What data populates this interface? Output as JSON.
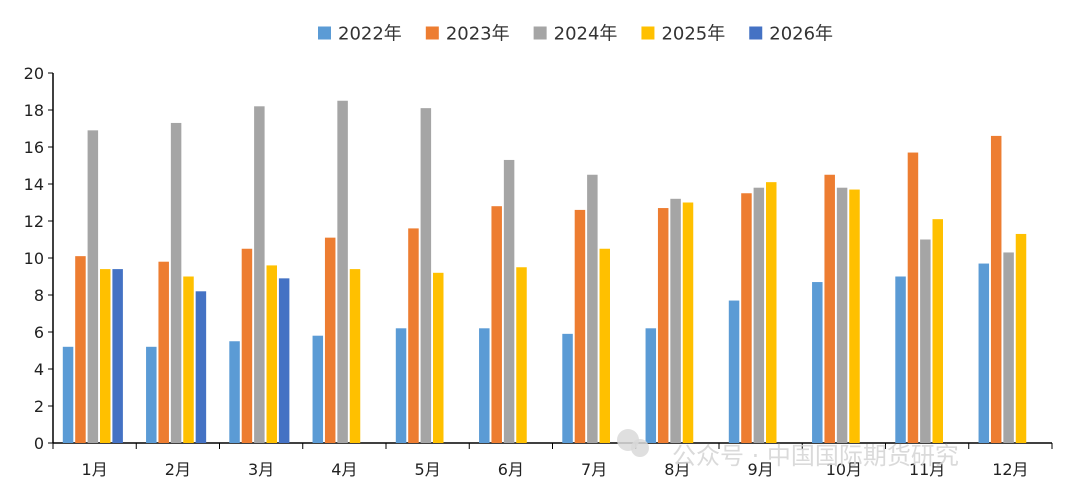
{
  "chart_data": {
    "type": "bar",
    "title": "",
    "xlabel": "",
    "ylabel": "",
    "categories": [
      "1月",
      "2月",
      "3月",
      "4月",
      "5月",
      "6月",
      "7月",
      "8月",
      "9月",
      "10月",
      "11月",
      "12月"
    ],
    "ylim": [
      0,
      20
    ],
    "yticks": [
      0,
      2,
      4,
      6,
      8,
      10,
      12,
      14,
      16,
      18,
      20
    ],
    "grid": false,
    "legend_position": "top-center",
    "series": [
      {
        "name": "2022年",
        "color": "#5b9bd5",
        "values": [
          5.2,
          5.2,
          5.5,
          5.8,
          6.2,
          6.2,
          5.9,
          6.2,
          7.7,
          8.7,
          9.0,
          9.7
        ]
      },
      {
        "name": "2023年",
        "color": "#ed7d31",
        "values": [
          10.1,
          9.8,
          10.5,
          11.1,
          11.6,
          12.8,
          12.6,
          12.7,
          13.5,
          14.5,
          15.7,
          16.6
        ]
      },
      {
        "name": "2024年",
        "color": "#a5a5a5",
        "values": [
          16.9,
          17.3,
          18.2,
          18.5,
          18.1,
          15.3,
          14.5,
          13.2,
          13.8,
          13.8,
          11.0,
          10.3
        ]
      },
      {
        "name": "2025年",
        "color": "#ffc000",
        "values": [
          9.4,
          9.0,
          9.6,
          9.4,
          9.2,
          9.5,
          10.5,
          13.0,
          14.1,
          13.7,
          12.1,
          11.3
        ]
      },
      {
        "name": "2026年",
        "color": "#4472c4",
        "values": [
          9.4,
          8.2,
          8.9,
          null,
          null,
          null,
          null,
          null,
          null,
          null,
          null,
          null
        ]
      }
    ]
  },
  "watermark": {
    "text": "公众号 · 中国国际期货研究",
    "icon": "wechat-icon"
  }
}
